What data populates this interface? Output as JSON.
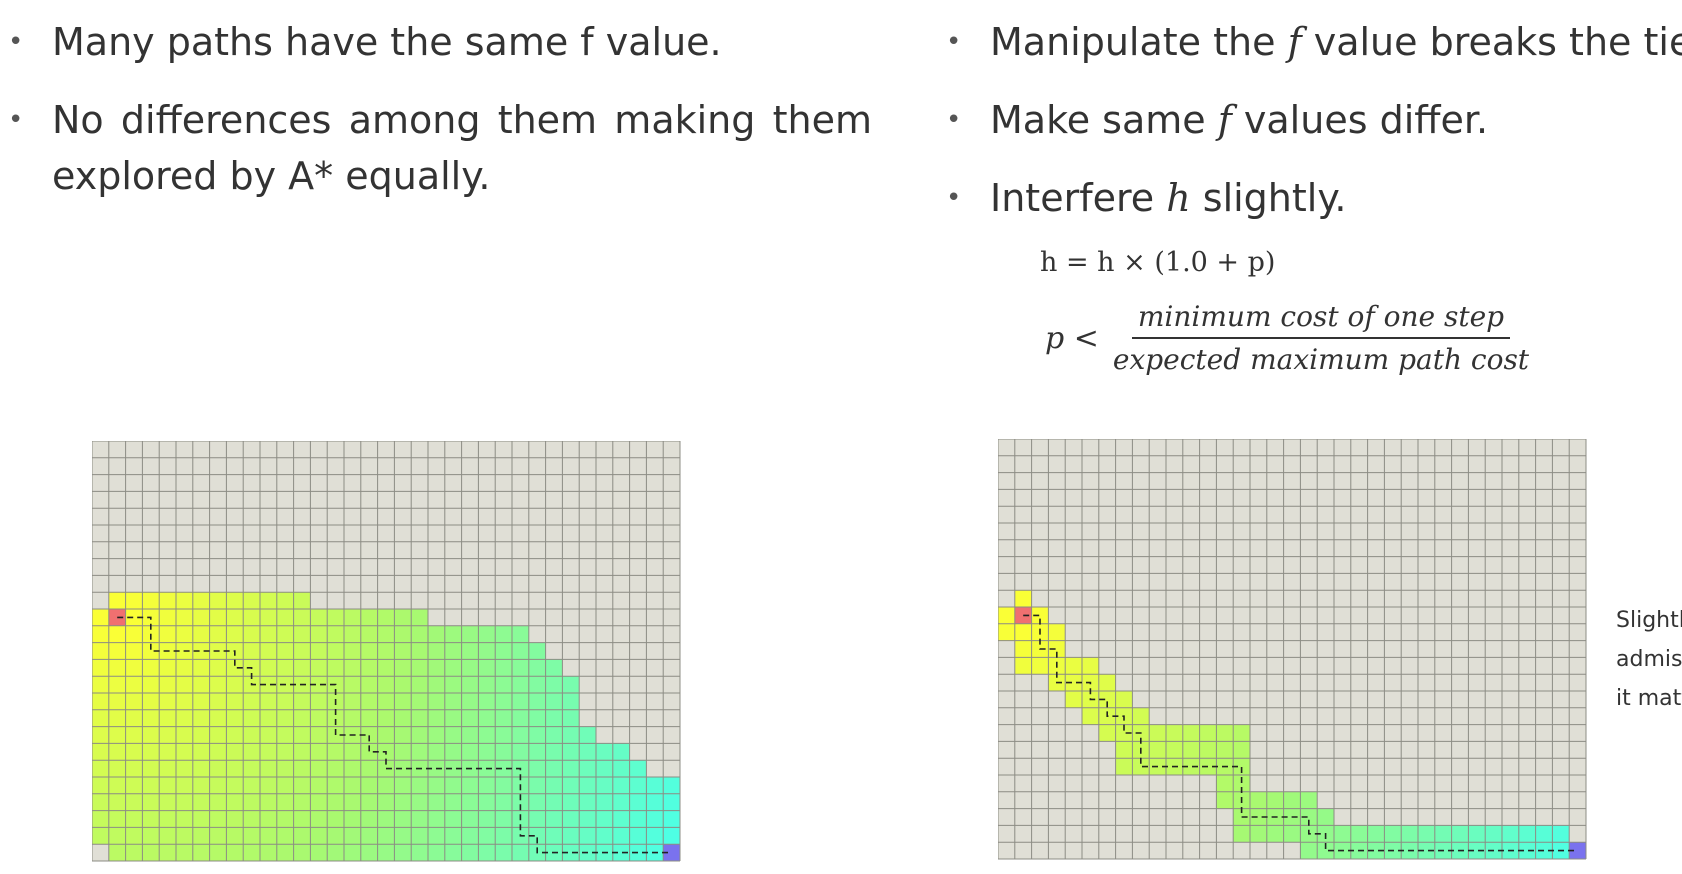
{
  "left_bullets": [
    {
      "text": "Many paths have the same f value."
    },
    {
      "text": "No differences among them making them explored by A* equally."
    }
  ],
  "right_bullets": [
    {
      "before": "Manipulate the ",
      "var": "f",
      "after": " value breaks the tie."
    },
    {
      "before": "Make same ",
      "var": "f",
      "after": " values differ."
    },
    {
      "before": "Interfere ",
      "var": "h",
      "after": " slightly."
    }
  ],
  "formula_1": "h = h × (1.0 + p)",
  "formula_2": {
    "lhs": "p <",
    "numerator": "minimum cost of one step",
    "denominator": "expected maximum path cost"
  },
  "side_note_lines": [
    "Slightl",
    "admiss",
    "it matt"
  ],
  "colors": {
    "background": "#ffffff",
    "text": "#333333",
    "grid_empty": "#e0dfd6",
    "grid_line": "#8c8c84",
    "start": "#f07070",
    "goal": "#7a72ee",
    "path": "#222222",
    "explored_gradient": [
      "#ffff33",
      "#a8f970",
      "#4cffe6"
    ]
  },
  "grids": [
    {
      "name": "plain-astar",
      "cols": 35,
      "rows": 25,
      "start": [
        1,
        10
      ],
      "goal": [
        34,
        24
      ],
      "explored": [
        [
          1,
          9,
          12
        ],
        [
          0,
          10,
          19
        ],
        [
          0,
          11,
          25
        ],
        [
          0,
          12,
          26
        ],
        [
          0,
          13,
          27
        ],
        [
          0,
          14,
          28
        ],
        [
          0,
          15,
          28
        ],
        [
          0,
          16,
          28
        ],
        [
          0,
          17,
          29
        ],
        [
          0,
          18,
          31
        ],
        [
          0,
          19,
          32
        ],
        [
          0,
          20,
          34
        ],
        [
          0,
          21,
          34
        ],
        [
          0,
          22,
          34
        ],
        [
          0,
          23,
          34
        ],
        [
          1,
          24,
          33
        ]
      ],
      "path": [
        [
          1,
          10
        ],
        [
          3,
          10
        ],
        [
          3,
          12
        ],
        [
          8,
          12
        ],
        [
          8,
          13
        ],
        [
          9,
          13
        ],
        [
          9,
          14
        ],
        [
          14,
          14
        ],
        [
          14,
          17
        ],
        [
          16,
          17
        ],
        [
          16,
          18
        ],
        [
          17,
          18
        ],
        [
          17,
          19
        ],
        [
          25,
          19
        ],
        [
          25,
          23
        ],
        [
          26,
          23
        ],
        [
          26,
          24
        ],
        [
          34,
          24
        ]
      ]
    },
    {
      "name": "tie-breaking-astar",
      "cols": 35,
      "rows": 25,
      "start": [
        1,
        10
      ],
      "goal": [
        34,
        24
      ],
      "explored": [
        [
          1,
          9,
          1
        ],
        [
          0,
          10,
          2
        ],
        [
          0,
          11,
          3
        ],
        [
          1,
          12,
          3
        ],
        [
          1,
          13,
          5
        ],
        [
          3,
          14,
          6
        ],
        [
          4,
          15,
          7
        ],
        [
          5,
          16,
          8
        ],
        [
          6,
          17,
          14
        ],
        [
          7,
          18,
          14
        ],
        [
          7,
          19,
          14
        ],
        [
          13,
          20,
          14
        ],
        [
          13,
          21,
          18
        ],
        [
          14,
          22,
          19
        ],
        [
          14,
          23,
          33
        ],
        [
          18,
          24,
          34
        ]
      ],
      "path": [
        [
          1,
          10
        ],
        [
          2,
          10
        ],
        [
          2,
          12
        ],
        [
          3,
          12
        ],
        [
          3,
          14
        ],
        [
          5,
          14
        ],
        [
          5,
          15
        ],
        [
          6,
          15
        ],
        [
          6,
          16
        ],
        [
          7,
          16
        ],
        [
          7,
          17
        ],
        [
          8,
          17
        ],
        [
          8,
          19
        ],
        [
          14,
          19
        ],
        [
          14,
          22
        ],
        [
          18,
          22
        ],
        [
          18,
          23
        ],
        [
          19,
          23
        ],
        [
          19,
          24
        ],
        [
          34,
          24
        ]
      ]
    }
  ]
}
